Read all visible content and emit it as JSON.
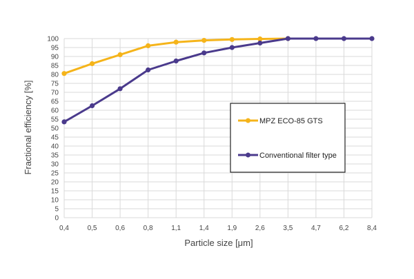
{
  "chart_data": {
    "type": "line",
    "categories": [
      "0,4",
      "0,5",
      "0,6",
      "0,8",
      "1,1",
      "1,4",
      "1,9",
      "2,6",
      "3,5",
      "4,7",
      "6,2",
      "8,4"
    ],
    "series": [
      {
        "name": "MPZ ECO-85 GTS",
        "color": "#F5B41A",
        "values": [
          80.5,
          86,
          91,
          96,
          98,
          99,
          99.5,
          99.8,
          100,
          null,
          null,
          null
        ]
      },
      {
        "name": "Conventional filter type",
        "color": "#4A3A8C",
        "values": [
          53.5,
          62.5,
          72,
          82.5,
          87.5,
          92,
          95,
          97.5,
          100,
          100,
          100,
          100
        ]
      }
    ],
    "xlabel": "Particle size [μm]",
    "ylabel": "Fractional efficiency [%]",
    "ylim": [
      0,
      100
    ],
    "ytick_step": 5,
    "grid": true,
    "legend_placement": "center-right"
  }
}
